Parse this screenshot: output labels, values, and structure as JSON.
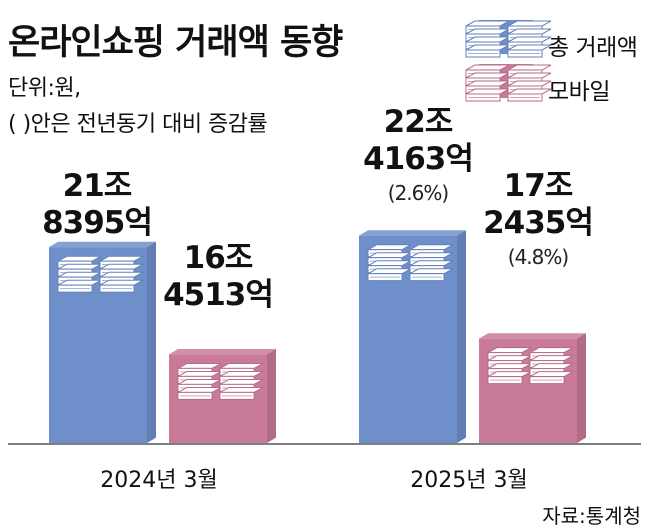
{
  "chart_data": {
    "type": "bar",
    "title": "온라인쇼핑 거래액 동향",
    "unit_note": "단위:원,",
    "paren_note": "(   )안은 전년동기 대비 증감률",
    "categories": [
      "2024년 3월",
      "2025년 3월"
    ],
    "series": [
      {
        "name": "총 거래액",
        "color": "#6f8fcb",
        "values": [
          218395,
          224163
        ],
        "labels": [
          [
            "21조",
            "8395억"
          ],
          [
            "22조",
            "4163억"
          ]
        ],
        "changes": [
          "",
          "(2.6%)"
        ]
      },
      {
        "name": "모바일",
        "color": "#c87a98",
        "values": [
          164513,
          172435
        ],
        "labels": [
          [
            "16조",
            "4513억"
          ],
          [
            "17조",
            "2435억"
          ]
        ],
        "changes": [
          "",
          "(4.8%)"
        ]
      }
    ],
    "ylim": [
      120000,
      226000
    ],
    "legend_position": "top-right",
    "grid": false,
    "source": "자료:통계청"
  }
}
